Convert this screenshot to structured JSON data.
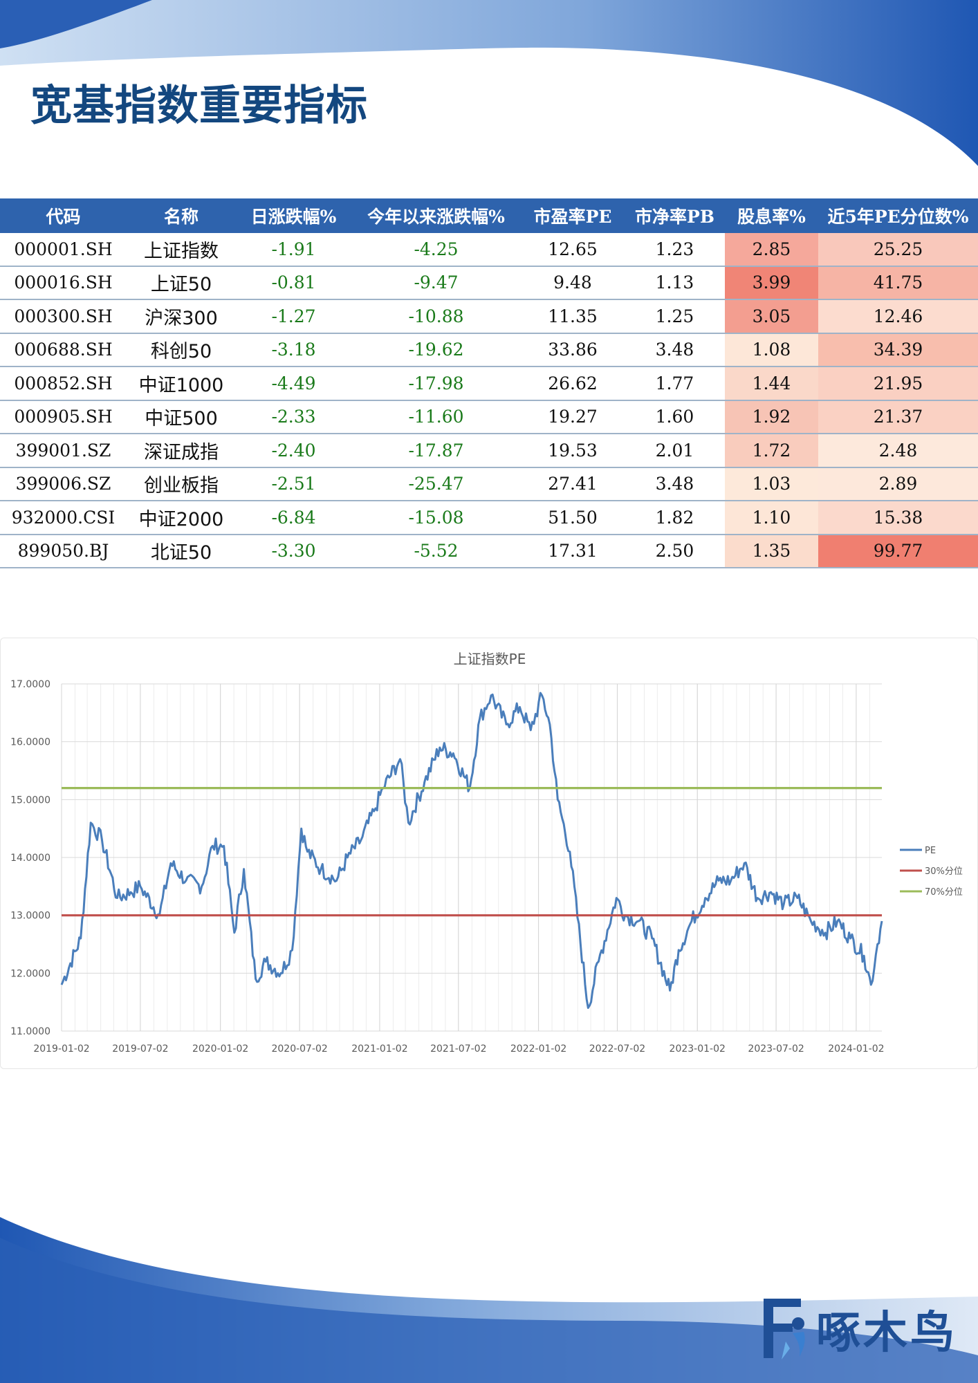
{
  "page": {
    "title": "宽基指数重要指标",
    "colors": {
      "title": "#13477f",
      "header_bg": "#2e63ad",
      "negative": "#1a7a1a"
    }
  },
  "table": {
    "headers": [
      "代码",
      "名称",
      "日涨跌幅%",
      "今年以来涨跌幅%",
      "市盈率PE",
      "市净率PB",
      "股息率%",
      "近5年PE分位数%"
    ],
    "rows": [
      {
        "code": "000001.SH",
        "name": "上证指数",
        "daily": "-1.91",
        "ytd": "-4.25",
        "pe": "12.65",
        "pb": "1.23",
        "div": "2.85",
        "pe_pct": "25.25",
        "div_color": "#f5a89b",
        "pct_color": "#f9c8bb"
      },
      {
        "code": "000016.SH",
        "name": "上证50",
        "daily": "-0.81",
        "ytd": "-9.47",
        "pe": "9.48",
        "pb": "1.13",
        "div": "3.99",
        "pe_pct": "41.75",
        "div_color": "#f08576",
        "pct_color": "#f6b4a5"
      },
      {
        "code": "000300.SH",
        "name": "沪深300",
        "daily": "-1.27",
        "ytd": "-10.88",
        "pe": "11.35",
        "pb": "1.25",
        "div": "3.05",
        "pe_pct": "12.46",
        "div_color": "#f39e90",
        "pct_color": "#fcdccf"
      },
      {
        "code": "000688.SH",
        "name": "科创50",
        "daily": "-3.18",
        "ytd": "-19.62",
        "pe": "33.86",
        "pb": "3.48",
        "div": "1.08",
        "pe_pct": "34.39",
        "div_color": "#fde7d8",
        "pct_color": "#f8bead"
      },
      {
        "code": "000852.SH",
        "name": "中证1000",
        "daily": "-4.49",
        "ytd": "-17.98",
        "pe": "26.62",
        "pb": "1.77",
        "div": "1.44",
        "pe_pct": "21.95",
        "div_color": "#fad8c9",
        "pct_color": "#fad0c2"
      },
      {
        "code": "000905.SH",
        "name": "中证500",
        "daily": "-2.33",
        "ytd": "-11.60",
        "pe": "19.27",
        "pb": "1.60",
        "div": "1.92",
        "pe_pct": "21.37",
        "div_color": "#f7c4b5",
        "pct_color": "#fad1c3"
      },
      {
        "code": "399001.SZ",
        "name": "深证成指",
        "daily": "-2.40",
        "ytd": "-17.87",
        "pe": "19.53",
        "pb": "2.01",
        "div": "1.72",
        "pe_pct": "2.48",
        "div_color": "#f9ccbd",
        "pct_color": "#fde9dc"
      },
      {
        "code": "399006.SZ",
        "name": "创业板指",
        "daily": "-2.51",
        "ytd": "-25.47",
        "pe": "27.41",
        "pb": "3.48",
        "div": "1.03",
        "pe_pct": "2.89",
        "div_color": "#fde9da",
        "pct_color": "#fde8db"
      },
      {
        "code": "932000.CSI",
        "name": "中证2000",
        "daily": "-6.84",
        "ytd": "-15.08",
        "pe": "51.50",
        "pb": "1.82",
        "div": "1.10",
        "pe_pct": "15.38",
        "div_color": "#fde6d7",
        "pct_color": "#fbd9cc"
      },
      {
        "code": "899050.BJ",
        "name": "北证50",
        "daily": "-3.30",
        "ytd": "-5.52",
        "pe": "17.31",
        "pb": "2.50",
        "div": "1.35",
        "pe_pct": "99.77",
        "div_color": "#fbdccc",
        "pct_color": "#f07f70"
      }
    ]
  },
  "chart_data": {
    "type": "line",
    "title": "上证指数PE",
    "ylim": [
      11,
      17
    ],
    "yticks": [
      "11.0000",
      "12.0000",
      "13.0000",
      "14.0000",
      "15.0000",
      "16.0000",
      "17.0000"
    ],
    "xticks": [
      "2019-01-02",
      "2019-07-02",
      "2020-01-02",
      "2020-07-02",
      "2021-01-02",
      "2021-07-02",
      "2022-01-02",
      "2022-07-02",
      "2023-01-02",
      "2023-07-02",
      "2024-01-02"
    ],
    "legend_position": "right",
    "grid": true,
    "series": [
      {
        "name": "PE",
        "color": "#4a7ebb",
        "x": [
          "2019-01-02",
          "2019-02-15",
          "2019-03-10",
          "2019-04-05",
          "2019-05-10",
          "2019-06-10",
          "2019-07-02",
          "2019-08-15",
          "2019-09-10",
          "2019-10-15",
          "2019-11-20",
          "2019-12-15",
          "2020-01-10",
          "2020-02-03",
          "2020-02-25",
          "2020-03-23",
          "2020-04-15",
          "2020-05-20",
          "2020-06-15",
          "2020-07-06",
          "2020-07-20",
          "2020-08-20",
          "2020-09-25",
          "2020-10-20",
          "2020-11-20",
          "2020-12-20",
          "2021-01-10",
          "2021-02-18",
          "2021-03-09",
          "2021-04-15",
          "2021-05-20",
          "2021-06-20",
          "2021-07-28",
          "2021-08-20",
          "2021-09-15",
          "2021-10-20",
          "2021-11-20",
          "2021-12-15",
          "2022-01-10",
          "2022-01-28",
          "2022-02-15",
          "2022-03-15",
          "2022-04-26",
          "2022-05-20",
          "2022-06-30",
          "2022-07-20",
          "2022-08-20",
          "2022-09-20",
          "2022-10-31",
          "2022-11-20",
          "2022-12-20",
          "2023-01-20",
          "2023-02-20",
          "2023-03-20",
          "2023-04-20",
          "2023-05-20",
          "2023-06-20",
          "2023-07-20",
          "2023-08-20",
          "2023-09-20",
          "2023-10-23",
          "2023-11-20",
          "2023-12-20",
          "2024-01-20",
          "2024-02-05",
          "2024-02-20",
          "2024-03-01"
        ],
        "values": [
          11.8,
          12.6,
          14.6,
          14.3,
          13.3,
          13.4,
          13.5,
          13.0,
          13.9,
          13.6,
          13.5,
          14.2,
          14.2,
          12.7,
          13.8,
          11.9,
          12.2,
          12.0,
          12.4,
          14.5,
          14.1,
          13.8,
          13.6,
          14.0,
          14.3,
          14.8,
          15.2,
          15.7,
          14.6,
          15.3,
          15.9,
          15.8,
          15.2,
          16.4,
          16.8,
          16.3,
          16.6,
          16.2,
          16.8,
          16.3,
          15.0,
          14.1,
          11.4,
          12.2,
          13.3,
          13.0,
          12.9,
          12.6,
          11.7,
          12.4,
          12.9,
          13.3,
          13.6,
          13.6,
          13.9,
          13.3,
          13.4,
          13.2,
          13.3,
          12.9,
          12.7,
          12.9,
          12.6,
          12.3,
          11.8,
          12.5,
          12.9
        ]
      },
      {
        "name": "30%分位",
        "color": "#c0504d",
        "x": [
          "2019-01-02",
          "2024-03-01"
        ],
        "values": [
          13.0,
          13.0
        ]
      },
      {
        "name": "70%分位",
        "color": "#9bbb59",
        "x": [
          "2019-01-02",
          "2024-03-01"
        ],
        "values": [
          15.2,
          15.2
        ]
      }
    ]
  },
  "logo": {
    "text": "啄木鸟"
  }
}
